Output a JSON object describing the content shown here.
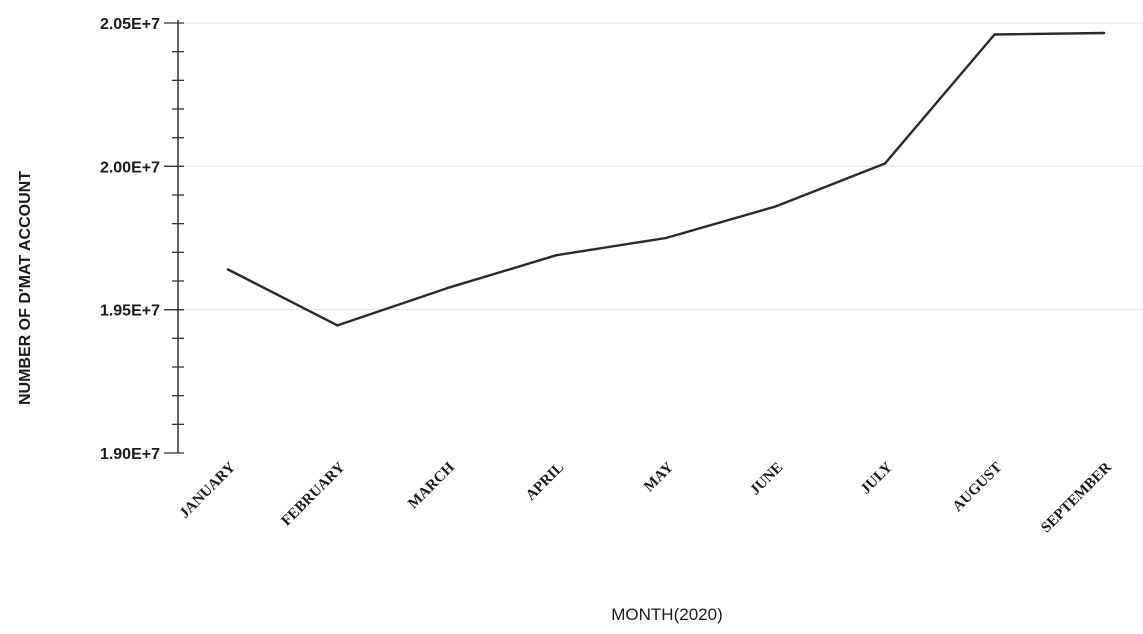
{
  "chart_data": {
    "type": "line",
    "title": "",
    "xlabel": "MONTH(2020)",
    "ylabel": "NUMBER OF D'MAT ACCOUNT",
    "categories": [
      "JANUARY",
      "FEBRUARY",
      "MARCH",
      "APRIL",
      "MAY",
      "JUNE",
      "JULY",
      "AUGUST",
      "SEPTEMBER"
    ],
    "series": [
      {
        "values": [
          19640000,
          19445000,
          19575000,
          19690000,
          19750000,
          19860000,
          20010000,
          20460000,
          20465000
        ]
      }
    ],
    "ylim": [
      19000000,
      20500000
    ],
    "yticks": [
      19000000,
      19500000,
      20000000,
      20500000
    ],
    "ytick_labels": [
      "1.90E+7",
      "1.95E+7",
      "2.00E+7",
      "2.05E+7"
    ],
    "grid": true,
    "legend": "none",
    "colors": {
      "line": "#2a2a2a",
      "axis": "#333333",
      "grid": "#e6e6e6"
    }
  }
}
